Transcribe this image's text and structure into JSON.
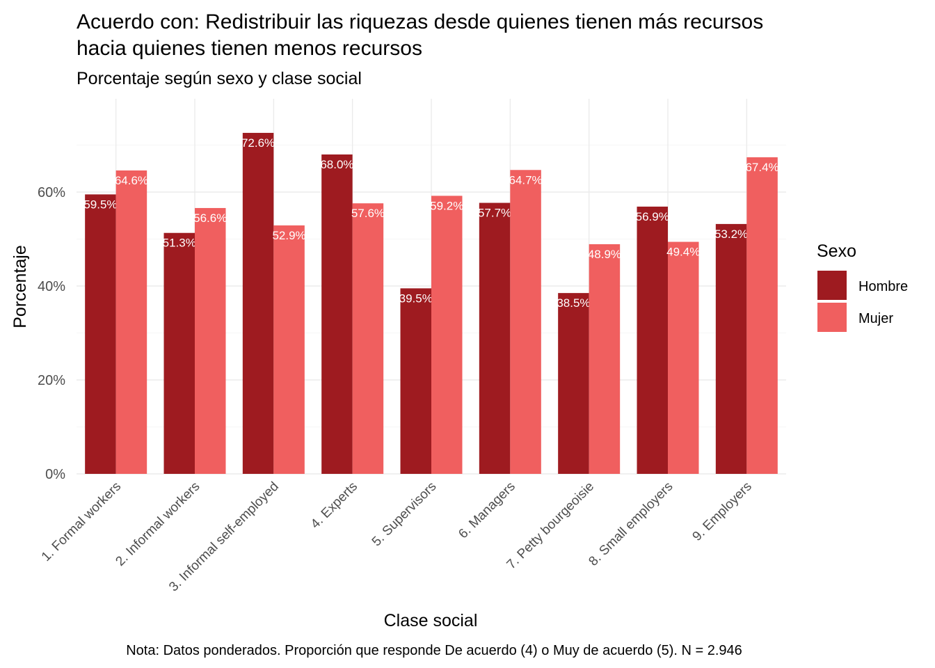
{
  "chart_data": {
    "type": "bar",
    "title_line1": "Acuerdo con: Redistribuir las riquezas desde quienes tienen más recursos",
    "title_line2": "hacia quienes tienen menos recursos",
    "subtitle": "Porcentaje según sexo y clase social",
    "xlabel": "Clase social",
    "ylabel": "Porcentaje",
    "caption": "Nota: Datos ponderados. Proporción que responde De acuerdo (4) o Muy de acuerdo (5). N = 2.946",
    "ylim": [
      0,
      75
    ],
    "yticks": [
      0,
      20,
      40,
      60
    ],
    "ytick_labels": [
      "0%",
      "20%",
      "40%",
      "60%"
    ],
    "grid": true,
    "legend": {
      "title": "Sexo",
      "position": "right"
    },
    "categories": [
      "1. Formal workers",
      "2. Informal workers",
      "3. Informal self-employed",
      "4. Experts",
      "5. Supervisors",
      "6. Managers",
      "7. Petty bourgeoisie",
      "8. Small employers",
      "9. Employers"
    ],
    "series": [
      {
        "name": "Hombre",
        "color": "#9e1b20",
        "values": [
          59.5,
          51.3,
          72.6,
          68.0,
          39.5,
          57.7,
          38.5,
          56.9,
          53.2
        ],
        "labels": [
          "59.5%",
          "51.3%",
          "72.6%",
          "68.0%",
          "39.5%",
          "57.7%",
          "38.5%",
          "56.9%",
          "53.2%"
        ]
      },
      {
        "name": "Mujer",
        "color": "#f05f5f",
        "values": [
          64.6,
          56.6,
          52.9,
          57.6,
          59.2,
          64.7,
          48.9,
          49.4,
          67.4
        ],
        "labels": [
          "64.6%",
          "56.6%",
          "52.9%",
          "57.6%",
          "59.2%",
          "64.7%",
          "48.9%",
          "49.4%",
          "67.4%"
        ]
      }
    ]
  }
}
